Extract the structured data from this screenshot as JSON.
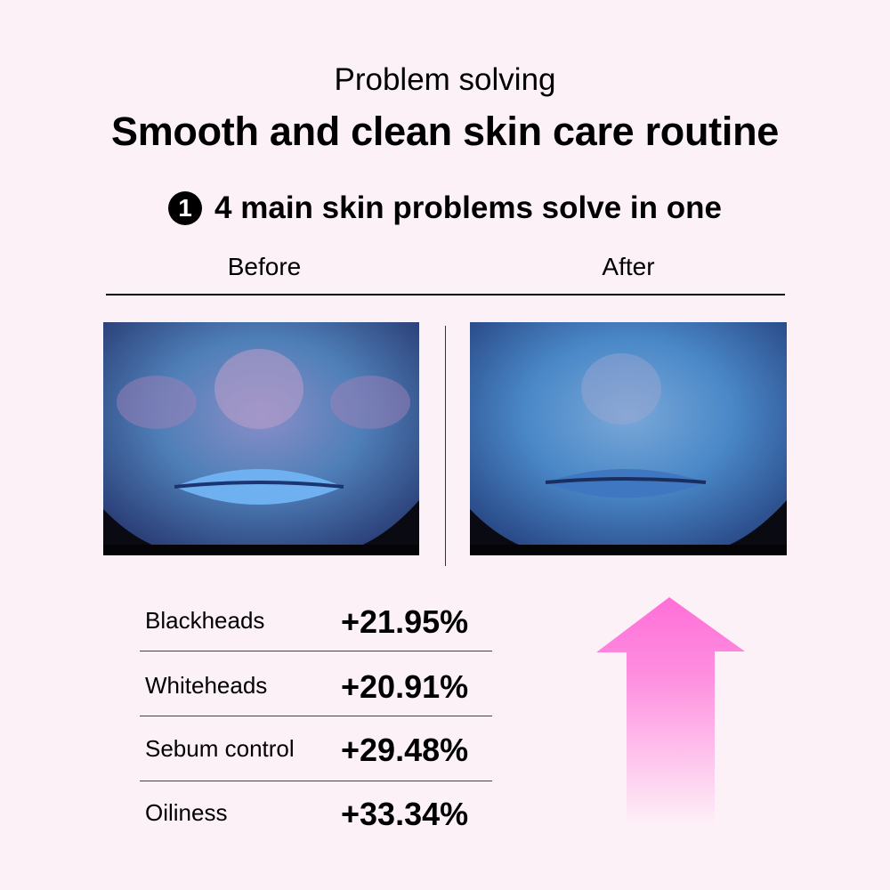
{
  "header": {
    "subtitle": "Problem solving",
    "title": "Smooth and clean skin care routine"
  },
  "section": {
    "number": "1",
    "heading": "4 main skin problems solve in one"
  },
  "comparison": {
    "before_label": "Before",
    "after_label": "After"
  },
  "results": [
    {
      "label": "Blackheads",
      "value": "+21.95%"
    },
    {
      "label": "Whiteheads",
      "value": "+20.91%"
    },
    {
      "label": "Sebum control",
      "value": "+29.48%"
    },
    {
      "label": "Oiliness",
      "value": "+33.34%"
    }
  ],
  "colors": {
    "background": "#fdf1f8",
    "arrow_top": "#ff6fd8",
    "arrow_bottom": "#fdf1f8",
    "skin_scan": "#3f7fc0"
  },
  "icons": {
    "arrow": "up-arrow-icon",
    "badge": "number-circle-icon"
  }
}
